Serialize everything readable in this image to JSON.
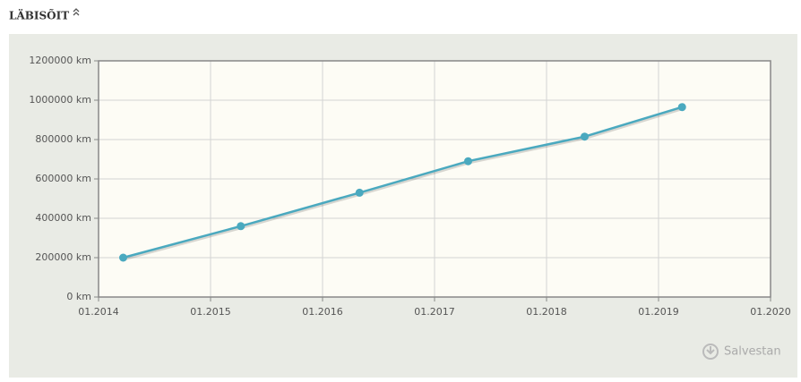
{
  "chart_data": {
    "type": "line",
    "title": "LÄBISÕIT",
    "x": [
      2014.22,
      2015.27,
      2016.33,
      2017.3,
      2018.34,
      2019.21
    ],
    "series": [
      {
        "color": "#4aa9bf",
        "values": [
          200000,
          360000,
          530000,
          690000,
          815000,
          965000
        ]
      }
    ],
    "xlim": [
      2014,
      2020
    ],
    "xticks": [
      {
        "value": 2014,
        "label": "01.2014"
      },
      {
        "value": 2015,
        "label": "01.2015"
      },
      {
        "value": 2016,
        "label": "01.2016"
      },
      {
        "value": 2017,
        "label": "01.2017"
      },
      {
        "value": 2018,
        "label": "01.2018"
      },
      {
        "value": 2019,
        "label": "01.2019"
      },
      {
        "value": 2020,
        "label": "01.2020"
      }
    ],
    "ylim": [
      0,
      1200000
    ],
    "yticks": [
      {
        "value": 0,
        "label": "0 km"
      },
      {
        "value": 200000,
        "label": "200000 km"
      },
      {
        "value": 400000,
        "label": "400000 km"
      },
      {
        "value": 600000,
        "label": "600000 km"
      },
      {
        "value": 800000,
        "label": "800000 km"
      },
      {
        "value": 1000000,
        "label": "1000000 km"
      },
      {
        "value": 1200000,
        "label": "1200000 km"
      }
    ],
    "grid": true
  },
  "save_button": "Salvestan"
}
